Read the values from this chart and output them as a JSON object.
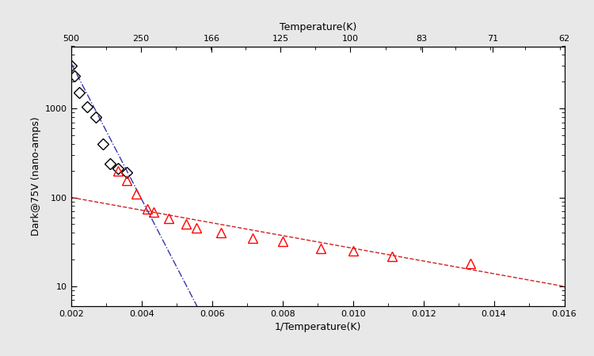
{
  "xlabel_bottom": "1/Temperature(K)",
  "xlabel_top": "Temperature(K)",
  "ylabel": "Dark@75V (nano-amps)",
  "xlim": [
    0.002,
    0.016
  ],
  "ylim_log": [
    6,
    5000
  ],
  "top_ticks": [
    500,
    250,
    166,
    125,
    100,
    83,
    71,
    62
  ],
  "bottom_ticks": [
    0.002,
    0.004,
    0.006,
    0.008,
    0.01,
    0.012,
    0.014,
    0.016
  ],
  "black_diamond_x": [
    0.002,
    0.0021,
    0.00222,
    0.00244,
    0.0027,
    0.0029,
    0.0031,
    0.00333,
    0.00357
  ],
  "black_diamond_y": [
    3000,
    2300,
    1500,
    1050,
    800,
    400,
    240,
    210,
    190
  ],
  "red_triangle_x": [
    0.00333,
    0.00357,
    0.00385,
    0.00417,
    0.00435,
    0.00476,
    0.00526,
    0.00556,
    0.00625,
    0.00714,
    0.008,
    0.00909,
    0.01,
    0.01111,
    0.01333
  ],
  "red_triangle_y": [
    200,
    155,
    110,
    75,
    68,
    58,
    50,
    46,
    40,
    35,
    32,
    27,
    25,
    22,
    18
  ],
  "blue_fit_x": [
    0.002,
    0.0058
  ],
  "blue_fit_y": [
    3200,
    4.0
  ],
  "red_fit_x": [
    0.002,
    0.016
  ],
  "red_fit_y": [
    100,
    10
  ],
  "bg_color": "#e8e8e8",
  "plot_bg": "#ffffff",
  "diamond_color": "black",
  "triangle_color": "red",
  "blue_line_color": "#3333aa",
  "red_line_color": "#cc2222",
  "yticks": [
    10,
    100,
    1000
  ],
  "ytick_labels": [
    "10",
    "100",
    "1000"
  ],
  "font_size_labels": 9,
  "font_size_ticks": 8,
  "marker_size_diamond": 7,
  "marker_size_triangle": 8
}
